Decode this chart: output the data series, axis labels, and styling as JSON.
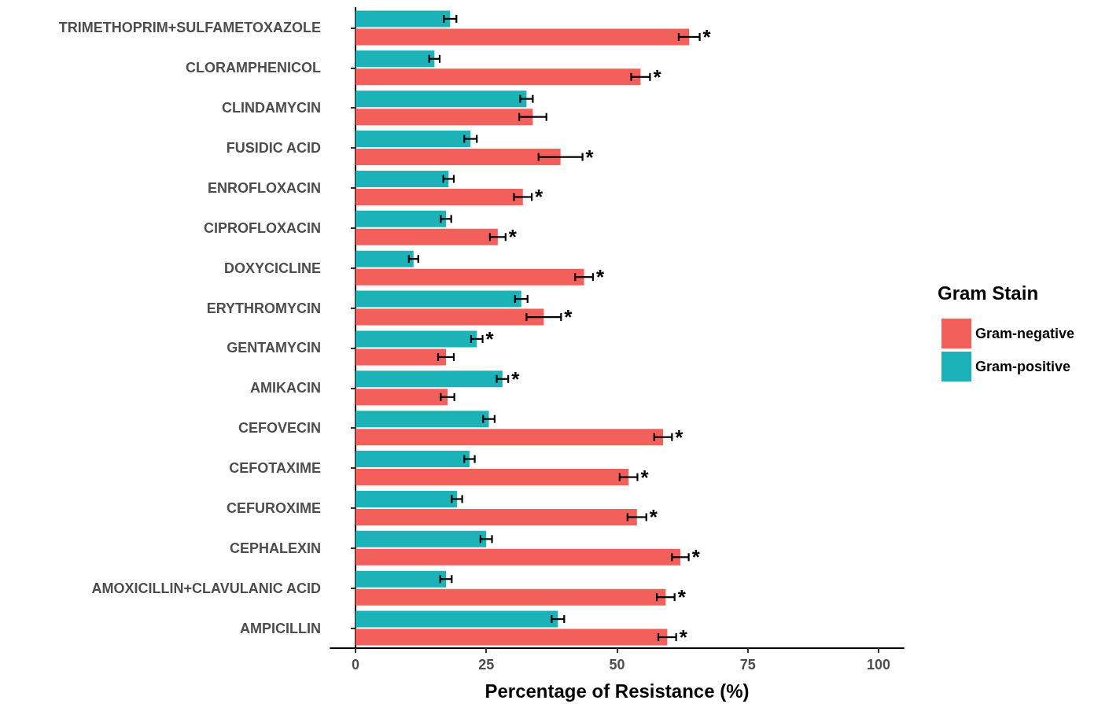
{
  "chart_data": {
    "type": "bar",
    "orientation": "horizontal",
    "xlabel": "Percentage of Resistance (%)",
    "legend_title": "Gram Stain",
    "legend": "right",
    "grid": false,
    "categories": [
      "TRIMETHOPRIM+SULFAMETOXAZOLE",
      "CLORAMPHENICOL",
      "CLINDAMYCIN",
      "FUSIDIC ACID",
      "ENROFLOXACIN",
      "CIPROFLOXACIN",
      "DOXYCICLINE",
      "ERYTHROMYCIN",
      "GENTAMYCIN",
      "AMIKACIN",
      "CEFOVECIN",
      "CEFOTAXIME",
      "CEFUROXIME",
      "CEPHALEXIN",
      "AMOXICILLIN+CLAVULANIC ACID",
      "AMPICILLIN"
    ],
    "xlim": [
      -4.8,
      104.8
    ],
    "xticks": [
      0,
      25,
      50,
      75,
      100
    ],
    "series": [
      {
        "name": "Gram-positive",
        "color": "#1bb3b7",
        "values": [
          18.1,
          15.1,
          32.7,
          22.0,
          17.8,
          17.3,
          11.1,
          31.7,
          23.2,
          28.1,
          25.5,
          21.8,
          19.4,
          25.0,
          17.3,
          38.7
        ],
        "errors": [
          1.2,
          1.0,
          1.2,
          1.2,
          1.0,
          1.0,
          0.9,
          1.2,
          1.1,
          1.1,
          1.1,
          1.0,
          1.0,
          1.1,
          1.1,
          1.2
        ],
        "value_labels": [
          null,
          null,
          null,
          null,
          null,
          null,
          null,
          null,
          "*",
          "*",
          null,
          null,
          null,
          null,
          null,
          null
        ]
      },
      {
        "name": "Gram-negative",
        "color": "#f35f5b",
        "values": [
          63.8,
          54.5,
          33.9,
          39.2,
          32.0,
          27.2,
          43.7,
          36.0,
          17.3,
          17.6,
          58.8,
          52.2,
          53.8,
          62.1,
          59.3,
          59.6
        ],
        "errors": [
          2.0,
          1.8,
          2.6,
          4.2,
          1.7,
          1.5,
          1.7,
          3.3,
          1.5,
          1.3,
          1.7,
          1.7,
          1.8,
          1.6,
          1.7,
          1.7
        ],
        "value_labels": [
          "*",
          "*",
          null,
          "*",
          "*",
          "*",
          "*",
          "*",
          null,
          null,
          "*",
          "*",
          "*",
          "*",
          "*",
          "*"
        ]
      }
    ]
  }
}
